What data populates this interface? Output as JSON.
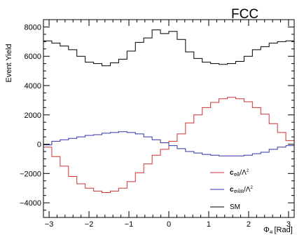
{
  "logo": "FCC",
  "chart_data": {
    "type": "line",
    "style": "step histogram",
    "xlabel": "Φ_4l [Rad]",
    "xlabel_main": "Φ",
    "xlabel_sub": "4l",
    "xlabel_unit": "[Rad]",
    "ylabel": "Event Yield",
    "xlim": [
      -3.14159,
      3.14159
    ],
    "ylim": [
      -5000,
      8500
    ],
    "x_ticks": [
      -3,
      -2,
      -1,
      0,
      1,
      2,
      3
    ],
    "x_tick_labels": [
      "−3",
      "−2",
      "−1",
      "0",
      "1",
      "2",
      "3"
    ],
    "y_ticks": [
      -4000,
      -2000,
      0,
      2000,
      4000,
      6000,
      8000
    ],
    "y_tick_labels": [
      "−4000",
      "−2000",
      "0",
      "2000",
      "4000",
      "6000",
      "8000"
    ],
    "n_bins": 30,
    "grid": false,
    "legend_position": "bottom-right",
    "series": [
      {
        "name": "SM",
        "color": "#000000",
        "values": [
          7050,
          6900,
          6700,
          6450,
          6000,
          5600,
          5500,
          5350,
          5550,
          5800,
          6350,
          6950,
          7250,
          7800,
          7550,
          7700,
          7150,
          6300,
          5850,
          5600,
          5500,
          5450,
          5500,
          5650,
          6000,
          6450,
          6650,
          6900,
          7000,
          7050
        ]
      },
      {
        "name": "c_ΦB̃/Λ²",
        "color": "#cc3333",
        "values": [
          -200,
          -850,
          -1500,
          -2200,
          -2700,
          -3000,
          -3200,
          -3300,
          -3200,
          -3000,
          -2550,
          -1950,
          -1350,
          -750,
          -350,
          200,
          700,
          1450,
          2000,
          2500,
          2850,
          3100,
          3200,
          3100,
          2900,
          2500,
          2050,
          1400,
          800,
          250
        ]
      },
      {
        "name": "c_ΦW̃B/Λ²",
        "color": "#3333aa",
        "values": [
          -50,
          200,
          300,
          400,
          500,
          600,
          650,
          750,
          800,
          850,
          800,
          700,
          500,
          300,
          100,
          -100,
          -300,
          -500,
          -600,
          -700,
          -750,
          -800,
          -800,
          -800,
          -750,
          -650,
          -550,
          -350,
          -200,
          -100
        ]
      }
    ]
  }
}
